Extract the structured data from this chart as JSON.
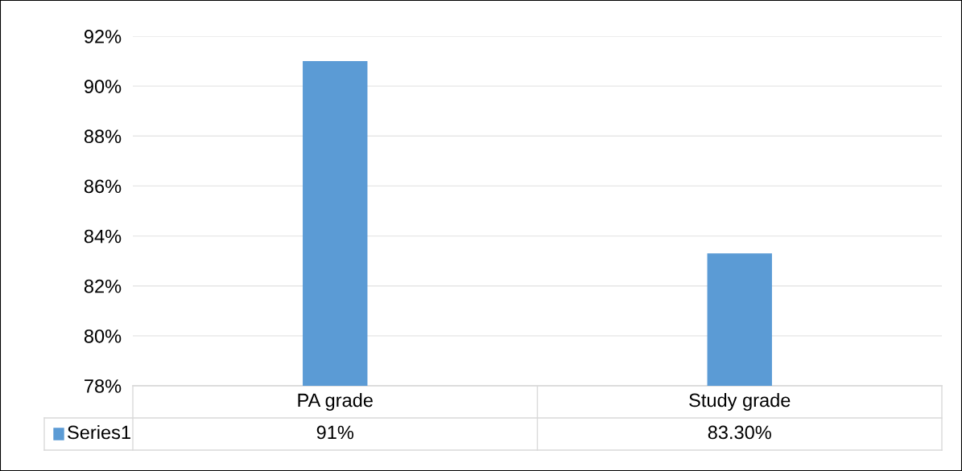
{
  "chart_data": {
    "type": "bar",
    "categories": [
      "PA grade",
      "Study grade"
    ],
    "series": [
      {
        "name": "Series1",
        "color": "#5b9bd5",
        "values": [
          91,
          83.3
        ],
        "value_labels": [
          "91%",
          "83.30%"
        ]
      }
    ],
    "ylim": [
      78,
      92
    ],
    "yticks": [
      {
        "value": 78,
        "label": "78%"
      },
      {
        "value": 80,
        "label": "80%"
      },
      {
        "value": 82,
        "label": "82%"
      },
      {
        "value": 84,
        "label": "84%"
      },
      {
        "value": 86,
        "label": "86%"
      },
      {
        "value": 88,
        "label": "88%"
      },
      {
        "value": 90,
        "label": "90%"
      },
      {
        "value": 92,
        "label": "92%"
      }
    ],
    "grid": "y"
  }
}
